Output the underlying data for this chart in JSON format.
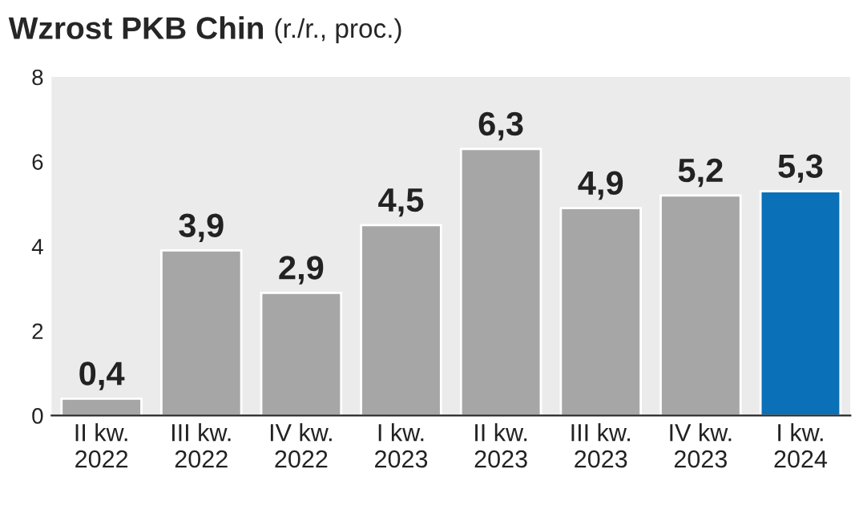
{
  "chart_data": {
    "type": "bar",
    "title": "Wzrost PKB Chin",
    "subtitle": "(r./r., proc.)",
    "categories": [
      "II kw.\n2022",
      "III kw.\n2022",
      "IV kw.\n2022",
      "I kw.\n2023",
      "II kw.\n2023",
      "III kw.\n2023",
      "IV kw.\n2023",
      "I kw.\n2024"
    ],
    "values": [
      0.4,
      3.9,
      2.9,
      4.5,
      6.3,
      4.9,
      5.2,
      5.3
    ],
    "colors": [
      "#a6a6a6",
      "#a6a6a6",
      "#a6a6a6",
      "#a6a6a6",
      "#a6a6a6",
      "#a6a6a6",
      "#a6a6a6",
      "#0a70b8"
    ],
    "value_labels": [
      "0,4",
      "3,9",
      "2,9",
      "4,5",
      "6,3",
      "4,9",
      "5,2",
      "5,3"
    ],
    "ylim": [
      0,
      8
    ],
    "yticks": [
      0,
      2,
      4,
      6,
      8
    ],
    "grid": false,
    "legend": false
  }
}
